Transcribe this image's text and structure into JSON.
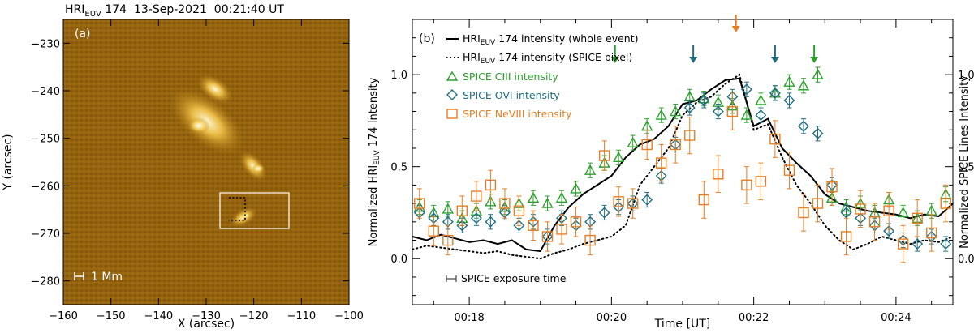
{
  "chart_data": [
    {
      "type": "image",
      "panel_label": "(a)",
      "title": "HRIEUV 174 13-Sep-2021 00:21:40 UT",
      "title_parts": {
        "prefix": "HRI",
        "sub": "EUV",
        "rest": " 174  13-Sep-2021  00:21:40 UT"
      },
      "xlabel": "X (arcsec)",
      "ylabel": "Y (arcsec)",
      "xlim": [
        -160,
        -100
      ],
      "ylim": [
        -285,
        -225
      ],
      "xticks": [
        -160,
        -150,
        -140,
        -130,
        -120,
        -110,
        -100
      ],
      "yticks": [
        -230,
        -240,
        -250,
        -260,
        -270,
        -280
      ],
      "scale_bar_label": "1 Mm",
      "box_region": {
        "x": [
          -128,
          -114
        ],
        "y": [
          -272,
          -264
        ]
      },
      "colors": {
        "background": "#8a5a0a",
        "bright": "#fff3c0",
        "box": "#ffffff"
      }
    },
    {
      "type": "line",
      "panel_label": "(b)",
      "xlabel": "Time [UT]",
      "ylabel_left": {
        "prefix": "Normalized HRI",
        "sub": "EUV",
        "rest": " 174 Intensity"
      },
      "ylabel_right": "Normalized SPICE Lines Intensity",
      "xlim": [
        17.2,
        24.8
      ],
      "ylim": [
        -0.25,
        1.3
      ],
      "xticks": [
        18,
        20,
        22,
        24
      ],
      "xtick_labels": [
        "00:18",
        "00:20",
        "00:22",
        "00:24"
      ],
      "yticks": [
        0.0,
        0.5,
        1.0
      ],
      "ytick_labels": [
        "0.0",
        "0.5",
        "1.0"
      ],
      "legend": [
        {
          "label_prefix": "HRI",
          "label_sub": "EUV",
          "label_rest": " 174 intensity (whole event)",
          "style": "solid",
          "color": "#000000"
        },
        {
          "label_prefix": "HRI",
          "label_sub": "EUV",
          "label_rest": " 174 intensity (SPICE pixel)",
          "style": "dotted",
          "color": "#000000"
        },
        {
          "label": "SPICE CIII intensity",
          "style": "triangle",
          "color": "#2ca02c"
        },
        {
          "label": "SPICE OVI intensity",
          "style": "diamond",
          "color": "#1f6e80"
        },
        {
          "label": "SPICE NeVIII intensity",
          "style": "square",
          "color": "#e67e22"
        }
      ],
      "exposure_label": "SPICE exposure time",
      "series": [
        {
          "name": "HRIEUV 174 intensity (whole event)",
          "color": "#000000",
          "x": [
            17.2,
            17.4,
            17.6,
            17.8,
            18.0,
            18.2,
            18.4,
            18.6,
            18.8,
            19.0,
            19.2,
            19.4,
            19.6,
            19.8,
            20.0,
            20.2,
            20.4,
            20.6,
            20.8,
            21.0,
            21.2,
            21.4,
            21.6,
            21.8,
            22.0,
            22.2,
            22.4,
            22.6,
            22.8,
            23.0,
            23.2,
            23.4,
            23.6,
            23.8,
            24.0,
            24.2,
            24.4,
            24.6,
            24.8
          ],
          "y": [
            0.12,
            0.1,
            0.13,
            0.11,
            0.09,
            0.1,
            0.08,
            0.1,
            0.05,
            0.04,
            0.18,
            0.28,
            0.35,
            0.4,
            0.45,
            0.55,
            0.62,
            0.65,
            0.72,
            0.84,
            0.86,
            0.92,
            0.97,
            0.98,
            0.72,
            0.76,
            0.6,
            0.52,
            0.45,
            0.35,
            0.3,
            0.28,
            0.26,
            0.25,
            0.24,
            0.22,
            0.24,
            0.23,
            0.3
          ]
        },
        {
          "name": "HRIEUV 174 intensity (SPICE pixel)",
          "color": "#000000",
          "x": [
            17.2,
            17.4,
            17.6,
            17.8,
            18.0,
            18.2,
            18.4,
            18.6,
            18.8,
            19.0,
            19.2,
            19.4,
            19.6,
            19.8,
            20.0,
            20.2,
            20.4,
            20.6,
            20.8,
            21.0,
            21.2,
            21.4,
            21.6,
            21.8,
            22.0,
            22.2,
            22.4,
            22.6,
            22.8,
            23.0,
            23.2,
            23.4,
            23.6,
            23.8,
            24.0,
            24.2,
            24.4,
            24.6,
            24.8
          ],
          "y": [
            0.05,
            0.07,
            0.06,
            0.05,
            0.04,
            0.03,
            0.04,
            0.02,
            0.01,
            0.0,
            0.03,
            0.05,
            0.08,
            0.1,
            0.12,
            0.18,
            0.4,
            0.5,
            0.6,
            0.78,
            0.85,
            0.88,
            0.95,
            1.0,
            0.7,
            0.73,
            0.55,
            0.4,
            0.3,
            0.18,
            0.1,
            0.05,
            0.08,
            0.12,
            0.1,
            0.08,
            0.1,
            0.09,
            0.12
          ]
        },
        {
          "name": "SPICE CIII intensity",
          "color": "#2ca02c",
          "marker": "triangle",
          "x": [
            17.3,
            17.5,
            17.7,
            17.9,
            18.1,
            18.3,
            18.5,
            18.7,
            18.9,
            19.1,
            19.3,
            19.5,
            19.7,
            19.9,
            20.1,
            20.3,
            20.5,
            20.7,
            20.9,
            21.1,
            21.3,
            21.5,
            21.7,
            21.9,
            22.1,
            22.3,
            22.5,
            22.7,
            22.9,
            23.1,
            23.3,
            23.5,
            23.7,
            23.9,
            24.1,
            24.3,
            24.5,
            24.7
          ],
          "y": [
            0.28,
            0.25,
            0.27,
            0.22,
            0.26,
            0.31,
            0.28,
            0.3,
            0.33,
            0.3,
            0.33,
            0.38,
            0.48,
            0.52,
            0.55,
            0.63,
            0.72,
            0.78,
            0.8,
            0.88,
            0.87,
            0.85,
            0.83,
            0.78,
            0.86,
            0.9,
            0.96,
            0.94,
            1.0,
            0.33,
            0.28,
            0.3,
            0.25,
            0.32,
            0.25,
            0.22,
            0.26,
            0.35
          ],
          "err": [
            0.04,
            0.04,
            0.04,
            0.04,
            0.04,
            0.04,
            0.04,
            0.04,
            0.04,
            0.04,
            0.04,
            0.04,
            0.04,
            0.04,
            0.04,
            0.04,
            0.04,
            0.04,
            0.04,
            0.04,
            0.04,
            0.04,
            0.04,
            0.04,
            0.04,
            0.04,
            0.04,
            0.04,
            0.04,
            0.04,
            0.04,
            0.04,
            0.04,
            0.04,
            0.04,
            0.04,
            0.04,
            0.04
          ]
        },
        {
          "name": "SPICE OVI intensity",
          "color": "#1f6e80",
          "marker": "diamond",
          "x": [
            17.3,
            17.5,
            17.7,
            17.9,
            18.1,
            18.3,
            18.5,
            18.7,
            18.9,
            19.1,
            19.3,
            19.5,
            19.7,
            19.9,
            20.1,
            20.3,
            20.5,
            20.7,
            20.9,
            21.1,
            21.3,
            21.5,
            21.7,
            21.9,
            22.1,
            22.3,
            22.5,
            22.7,
            22.9,
            23.1,
            23.3,
            23.5,
            23.7,
            23.9,
            24.1,
            24.3,
            24.5,
            24.7
          ],
          "y": [
            0.25,
            0.22,
            0.2,
            0.18,
            0.22,
            0.2,
            0.25,
            0.18,
            0.2,
            0.12,
            0.22,
            0.18,
            0.2,
            0.25,
            0.28,
            0.3,
            0.32,
            0.45,
            0.62,
            0.82,
            0.86,
            0.8,
            0.88,
            0.92,
            0.78,
            0.9,
            0.86,
            0.72,
            0.68,
            0.4,
            0.25,
            0.22,
            0.18,
            0.15,
            0.1,
            0.08,
            0.12,
            0.08
          ],
          "err": [
            0.04,
            0.04,
            0.04,
            0.04,
            0.04,
            0.04,
            0.04,
            0.04,
            0.04,
            0.04,
            0.04,
            0.04,
            0.04,
            0.04,
            0.04,
            0.04,
            0.04,
            0.04,
            0.04,
            0.04,
            0.04,
            0.04,
            0.04,
            0.04,
            0.04,
            0.04,
            0.04,
            0.04,
            0.04,
            0.04,
            0.04,
            0.04,
            0.04,
            0.04,
            0.04,
            0.04,
            0.04,
            0.04
          ]
        },
        {
          "name": "SPICE NeVIII intensity",
          "color": "#e67e22",
          "marker": "square",
          "x": [
            17.3,
            17.5,
            17.7,
            17.9,
            18.1,
            18.3,
            18.5,
            18.7,
            18.9,
            19.1,
            19.3,
            19.5,
            19.7,
            19.9,
            20.1,
            20.3,
            20.5,
            20.7,
            20.9,
            21.1,
            21.3,
            21.5,
            21.7,
            21.9,
            22.1,
            22.3,
            22.5,
            22.7,
            22.9,
            23.1,
            23.3,
            23.5,
            23.7,
            23.9,
            24.1,
            24.3,
            24.5,
            24.7
          ],
          "y": [
            0.3,
            0.15,
            0.1,
            0.26,
            0.34,
            0.4,
            0.3,
            0.26,
            0.18,
            0.12,
            0.16,
            0.2,
            0.1,
            0.56,
            0.31,
            0.3,
            0.62,
            0.52,
            0.62,
            0.67,
            0.32,
            0.46,
            0.8,
            0.4,
            0.42,
            0.65,
            0.48,
            0.25,
            0.3,
            0.39,
            0.12,
            0.27,
            0.2,
            0.26,
            0.08,
            0.22,
            0.14,
            0.3
          ],
          "err": [
            0.08,
            0.08,
            0.08,
            0.08,
            0.08,
            0.08,
            0.08,
            0.08,
            0.08,
            0.08,
            0.08,
            0.08,
            0.08,
            0.08,
            0.08,
            0.08,
            0.08,
            0.1,
            0.1,
            0.1,
            0.1,
            0.1,
            0.1,
            0.1,
            0.1,
            0.1,
            0.1,
            0.1,
            0.1,
            0.1,
            0.1,
            0.1,
            0.1,
            0.1,
            0.1,
            0.1,
            0.1,
            0.1
          ]
        }
      ],
      "arrows": [
        {
          "x": 20.05,
          "color": "#2ca02c"
        },
        {
          "x": 21.15,
          "color": "#1f6e80"
        },
        {
          "x": 21.75,
          "color": "#e67e22"
        },
        {
          "x": 22.3,
          "color": "#1f6e80"
        },
        {
          "x": 22.85,
          "color": "#2ca02c"
        }
      ]
    }
  ]
}
